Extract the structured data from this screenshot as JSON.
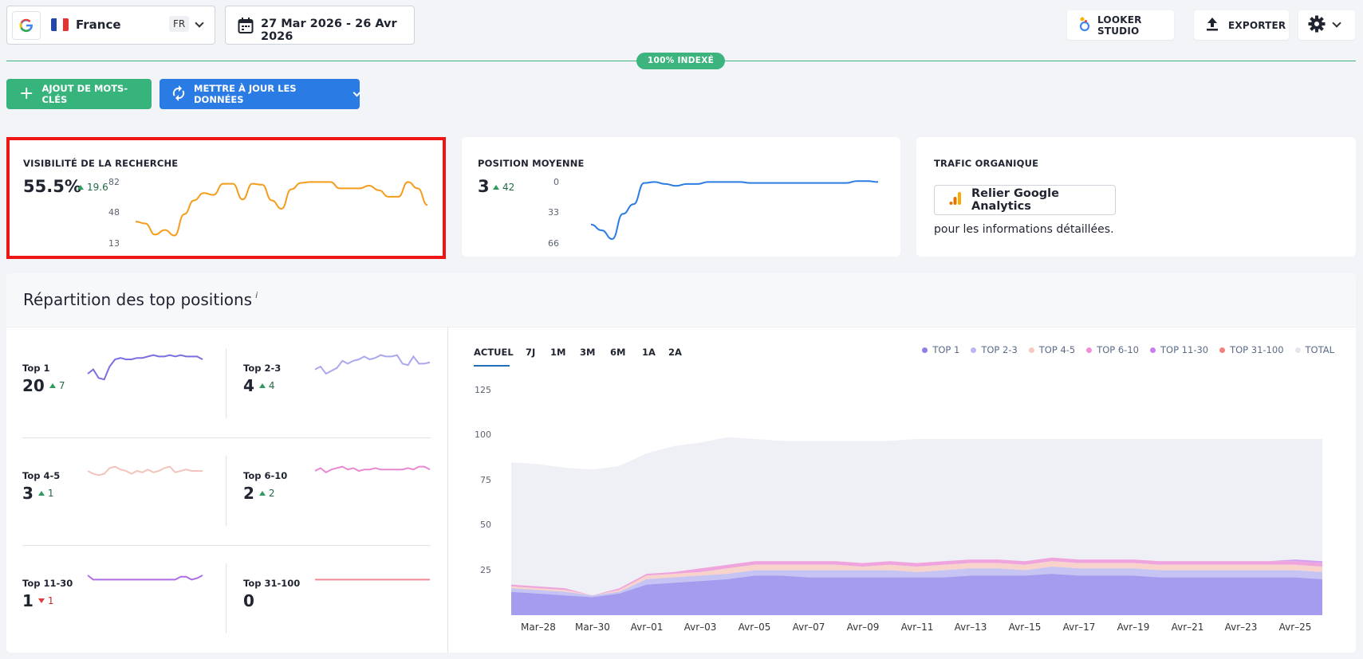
{
  "top_bar": {
    "country": "France",
    "language": "FR",
    "date_range": "27 Mar 2026 - 26 Avr 2026",
    "looker_label": "LOOKER STUDIO",
    "export_label": "EXPORTER"
  },
  "index_badge": "100% INDEXÉ",
  "actions": {
    "add_keywords": "AJOUT DE MOTS-CLÉS",
    "update_data": "METTRE À JOUR LES DONNÉES"
  },
  "cards": {
    "visibility": {
      "title": "VISIBILITÉ DE LA RECHERCHE",
      "value": "55.5%",
      "delta": "19.6",
      "axis": [
        "82",
        "48",
        "13"
      ]
    },
    "position": {
      "title": "POSITION MOYENNE",
      "value": "3",
      "delta": "42",
      "axis": [
        "0",
        "33",
        "66"
      ]
    },
    "traffic": {
      "title": "TRAFIC ORGANIQUE",
      "ga_button": "Relier Google Analytics",
      "ga_note": "pour les informations détaillées."
    }
  },
  "distribution": {
    "title": "Répartition des top positions",
    "info": "i",
    "items": [
      {
        "label": "Top 1",
        "value": "20",
        "delta": "7",
        "dir": "up"
      },
      {
        "label": "Top 2-3",
        "value": "4",
        "delta": "4",
        "dir": "up"
      },
      {
        "label": "Top 4-5",
        "value": "3",
        "delta": "1",
        "dir": "up"
      },
      {
        "label": "Top 6-10",
        "value": "2",
        "delta": "2",
        "dir": "up"
      },
      {
        "label": "Top 11-30",
        "value": "1",
        "delta": "1",
        "dir": "down"
      },
      {
        "label": "Top 31-100",
        "value": "0",
        "delta": "",
        "dir": "none"
      }
    ],
    "tabs": [
      "ACTUEL",
      "7J",
      "1M",
      "3M",
      "6M",
      "1A",
      "2A"
    ],
    "active_tab": "ACTUEL",
    "legend": [
      {
        "name": "TOP 1",
        "color": "#8a7fe6"
      },
      {
        "name": "TOP 2-3",
        "color": "#b8b7f0"
      },
      {
        "name": "TOP 4-5",
        "color": "#f6c9c0"
      },
      {
        "name": "TOP 6-10",
        "color": "#f08fd8"
      },
      {
        "name": "TOP 11-30",
        "color": "#c57ff0"
      },
      {
        "name": "TOP 31-100",
        "color": "#f47f7f"
      },
      {
        "name": "TOTAL",
        "color": "#e4e6ee"
      }
    ]
  },
  "chart_data": {
    "type": "area",
    "ylim": [
      0,
      125
    ],
    "yticks": [
      125,
      100,
      75,
      50,
      25
    ],
    "xticks": [
      "Mar–28",
      "Mar–30",
      "Avr–01",
      "Avr–03",
      "Avr–05",
      "Avr–07",
      "Avr–09",
      "Avr–11",
      "Avr–13",
      "Avr–15",
      "Avr–17",
      "Avr–19",
      "Avr–21",
      "Avr–23",
      "Avr–25"
    ],
    "x": [
      "Mar–27",
      "Mar–28",
      "Mar–29",
      "Mar–30",
      "Mar–31",
      "Avr–01",
      "Avr–02",
      "Avr–03",
      "Avr–04",
      "Avr–05",
      "Avr–06",
      "Avr–07",
      "Avr–08",
      "Avr–09",
      "Avr–10",
      "Avr–11",
      "Avr–12",
      "Avr–13",
      "Avr–14",
      "Avr–15",
      "Avr–16",
      "Avr–17",
      "Avr–18",
      "Avr–19",
      "Avr–20",
      "Avr–21",
      "Avr–22",
      "Avr–23",
      "Avr–24",
      "Avr–25",
      "Avr–26"
    ],
    "series": [
      {
        "name": "TOP 1",
        "values": [
          13,
          12,
          11,
          10,
          12,
          17,
          18,
          19,
          20,
          22,
          22,
          21,
          21,
          21,
          21,
          21,
          21,
          22,
          22,
          22,
          23,
          22,
          22,
          22,
          21,
          21,
          21,
          21,
          21,
          21,
          20
        ]
      },
      {
        "name": "TOP 2-3",
        "values": [
          2,
          2,
          2,
          1,
          1,
          3,
          3,
          3,
          3,
          3,
          3,
          4,
          4,
          4,
          4,
          3,
          4,
          4,
          4,
          3,
          4,
          4,
          4,
          4,
          4,
          4,
          4,
          4,
          4,
          4,
          4
        ]
      },
      {
        "name": "TOP 4-5",
        "values": [
          1,
          1,
          1,
          0,
          1,
          2,
          2,
          2,
          3,
          3,
          3,
          3,
          3,
          2,
          3,
          3,
          3,
          3,
          3,
          3,
          3,
          3,
          3,
          3,
          3,
          3,
          3,
          3,
          3,
          3,
          3
        ]
      },
      {
        "name": "TOP 6-10",
        "values": [
          1,
          1,
          1,
          0,
          1,
          1,
          1,
          2,
          2,
          2,
          2,
          2,
          2,
          2,
          2,
          2,
          2,
          2,
          2,
          2,
          2,
          2,
          2,
          2,
          2,
          2,
          2,
          2,
          2,
          2,
          2
        ]
      },
      {
        "name": "TOP 11-30",
        "values": [
          0,
          0,
          0,
          0,
          0,
          0,
          0,
          0,
          0,
          0,
          0,
          0,
          0,
          0,
          0,
          0,
          0,
          0,
          0,
          0,
          0,
          0,
          0,
          0,
          0,
          0,
          0,
          0,
          0,
          1,
          1
        ]
      },
      {
        "name": "TOP 31-100",
        "values": [
          0,
          0,
          0,
          0,
          0,
          0,
          0,
          0,
          0,
          0,
          0,
          0,
          0,
          0,
          0,
          0,
          0,
          0,
          0,
          0,
          0,
          0,
          0,
          0,
          0,
          0,
          0,
          0,
          0,
          0,
          0
        ]
      },
      {
        "name": "TOTAL",
        "values": [
          85,
          84,
          82,
          81,
          83,
          90,
          94,
          96,
          99,
          98,
          97,
          97,
          97,
          97,
          97,
          98,
          98,
          98,
          98,
          98,
          98,
          98,
          98,
          98,
          98,
          98,
          98,
          98,
          98,
          98,
          98
        ]
      }
    ]
  },
  "visibility_chart": {
    "type": "line",
    "ylim": [
      13,
      82
    ],
    "values": [
      37,
      35,
      23,
      28,
      22,
      45,
      60,
      68,
      66,
      78,
      78,
      61,
      78,
      77,
      60,
      51,
      72,
      79,
      80,
      80,
      80,
      73,
      73,
      73,
      76,
      71,
      64,
      64,
      80,
      73,
      55
    ]
  },
  "position_chart": {
    "type": "line",
    "ylim": [
      0,
      66
    ],
    "reversed": true,
    "values": [
      46,
      52,
      61,
      35,
      25,
      3,
      2,
      4,
      6,
      4,
      4,
      2,
      2,
      2,
      2,
      3,
      3,
      3,
      3,
      3,
      3,
      3,
      3,
      3,
      3,
      1,
      1,
      2
    ]
  },
  "sparklines": {
    "top1": [
      15,
      12,
      18,
      19,
      10,
      5,
      4,
      5,
      5,
      4,
      4,
      3,
      2,
      3,
      3,
      2,
      3,
      2,
      3,
      3,
      3,
      5
    ],
    "top2_3": [
      12,
      10,
      15,
      13,
      11,
      6,
      8,
      6,
      5,
      3,
      5,
      4,
      2,
      3,
      3,
      2,
      8,
      9,
      3,
      8,
      8,
      7
    ],
    "top4_5": [
      5,
      7,
      8,
      7,
      3,
      2,
      4,
      5,
      7,
      5,
      6,
      4,
      6,
      5,
      3,
      2,
      6,
      5,
      4,
      5,
      5,
      5
    ],
    "top6_10": [
      5,
      3,
      6,
      4,
      3,
      2,
      4,
      3,
      5,
      4,
      4,
      3,
      4,
      4,
      4,
      4,
      4,
      3,
      4,
      2,
      2,
      4
    ],
    "top11_30": [
      0,
      3,
      3,
      3,
      3,
      3,
      3,
      3,
      3,
      3,
      3,
      3,
      3,
      3,
      3,
      3,
      3,
      1,
      1,
      3,
      2,
      0
    ],
    "top31_100": [
      3,
      3,
      3,
      3,
      3,
      3,
      3,
      3,
      3,
      3,
      3,
      3,
      3,
      3,
      3,
      3,
      3,
      3,
      3,
      3,
      3,
      3
    ]
  },
  "colors": {
    "green": "#37b37c",
    "blue": "#2a7be4",
    "visibility_line": "#f59c1a",
    "position_line": "#2a7be4",
    "highlight": "#f01515"
  }
}
